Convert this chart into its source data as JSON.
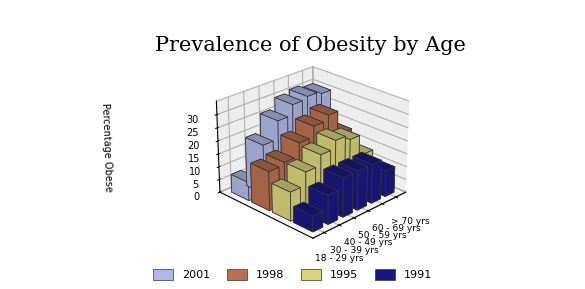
{
  "title": "Prevalence of Obesity by Age",
  "ylabel": "Percentage Obese",
  "categories": [
    "18 - 29 yrs",
    "30 - 39 yrs",
    "40 - 49 yrs",
    "50 - 59 yrs",
    "60 - 69 yrs",
    "> 70 yrs"
  ],
  "series_labels": [
    "2001",
    "1998",
    "1995",
    "1991"
  ],
  "series_colors": [
    "#b0b8e8",
    "#b87050",
    "#d8d47a",
    "#1a1880"
  ],
  "values": {
    "2001": [
      7,
      19,
      26,
      30,
      31,
      30
    ],
    "1998": [
      15,
      16,
      21,
      25,
      27,
      18
    ],
    "1995": [
      11,
      16,
      20,
      23,
      21,
      13
    ],
    "1991": [
      6,
      11,
      15,
      15,
      15,
      10
    ]
  },
  "ylim": [
    0,
    35
  ],
  "yticks": [
    0,
    5,
    10,
    15,
    20,
    25,
    30
  ],
  "background_color": "#ffffff",
  "title_fontsize": 15,
  "elev": 25,
  "azim": 225
}
